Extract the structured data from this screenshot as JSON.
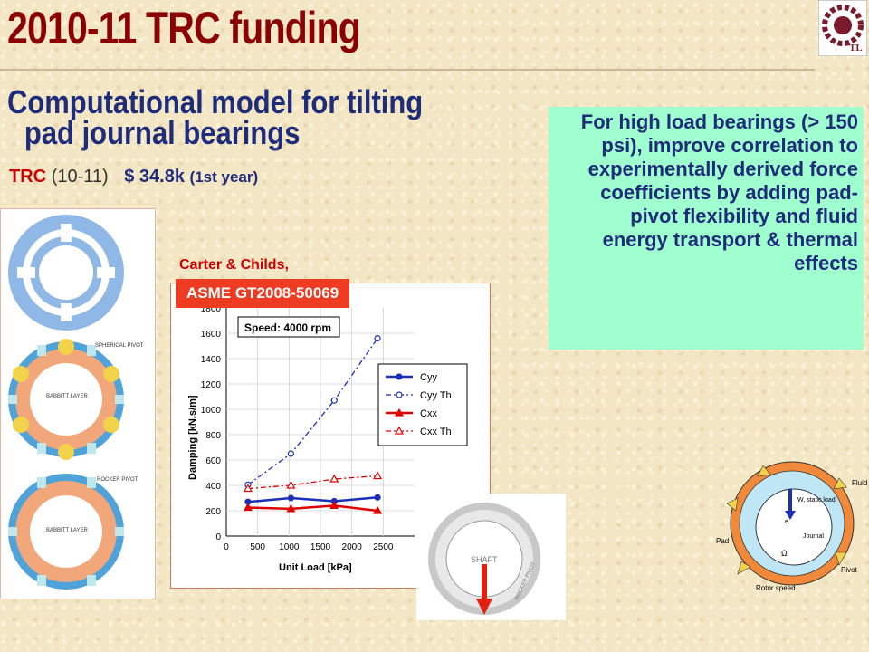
{
  "slide": {
    "title": "2010-11 TRC funding",
    "subtitle_line1": "Computational model for tilting",
    "subtitle_line2": "pad journal bearings",
    "trc_label": "TRC",
    "trc_years": "(10-11)",
    "amount": "$ 34.8k",
    "amount_note": "(1st year)",
    "objective": "For high load bearings (> 150 psi), improve correlation to experimentally derived force coefficients by adding pad-pivot flexibility and fluid energy transport & thermal effects",
    "citation_author": "Carter & Childs,",
    "citation_ref": "ASME GT2008-50069",
    "accent_title": "#8b0000",
    "accent_text": "#1f2c7a",
    "accent_red": "#cc0000",
    "objective_bg": "#9fffcf"
  },
  "bearing_strip": {
    "spherical_label": "SPHERICAL PIVOT",
    "babbitt_label": "BABBITT LAYER",
    "rocker_label": "ROCKER PIVOT",
    "babbitt_label_2": "BABBITT LAYER"
  },
  "shaft_photo": {
    "shaft_label": "SHAFT",
    "rocker_label": "ROCKER PIVOT"
  },
  "schematic": {
    "fluid": "Fluid",
    "static_load": "W, static load",
    "e_label": "e",
    "journal": "Journal",
    "pad": "Pad",
    "omega": "Ω",
    "pivot": "Pivot",
    "rotor_speed": "Rotor speed"
  },
  "chart_data": {
    "type": "line",
    "title": "Speed: 4000 rpm",
    "xlabel": "Unit Load [kPa]",
    "ylabel": "Damping [kN.s/m]",
    "xlim": [
      0,
      3000
    ],
    "ylim": [
      0,
      1800
    ],
    "xticks": [
      0,
      500,
      1000,
      1500,
      2000,
      2500
    ],
    "yticks": [
      0,
      200,
      400,
      600,
      800,
      1000,
      1200,
      1400,
      1600,
      1800
    ],
    "legend_position": "right",
    "series": [
      {
        "name": "Cyy",
        "x": [
          345,
          1030,
          1720,
          2410
        ],
        "values": [
          270,
          300,
          275,
          305
        ],
        "color": "#1c2fb8",
        "dash": "",
        "marker": "circle",
        "filled": true
      },
      {
        "name": "Cyy Th",
        "x": [
          345,
          1030,
          1720,
          2410
        ],
        "values": [
          405,
          650,
          1070,
          1560
        ],
        "color": "#1c2fb8",
        "dash": "6 3 2 3",
        "marker": "circle",
        "filled": false
      },
      {
        "name": "Cxx",
        "x": [
          345,
          1030,
          1720,
          2410
        ],
        "values": [
          225,
          215,
          240,
          200
        ],
        "color": "#e00000",
        "dash": "",
        "marker": "triangle",
        "filled": true
      },
      {
        "name": "Cxx Th",
        "x": [
          345,
          1030,
          1720,
          2410
        ],
        "values": [
          375,
          400,
          450,
          475
        ],
        "color": "#e00000",
        "dash": "6 3 2 3",
        "marker": "triangle",
        "filled": false
      }
    ]
  }
}
